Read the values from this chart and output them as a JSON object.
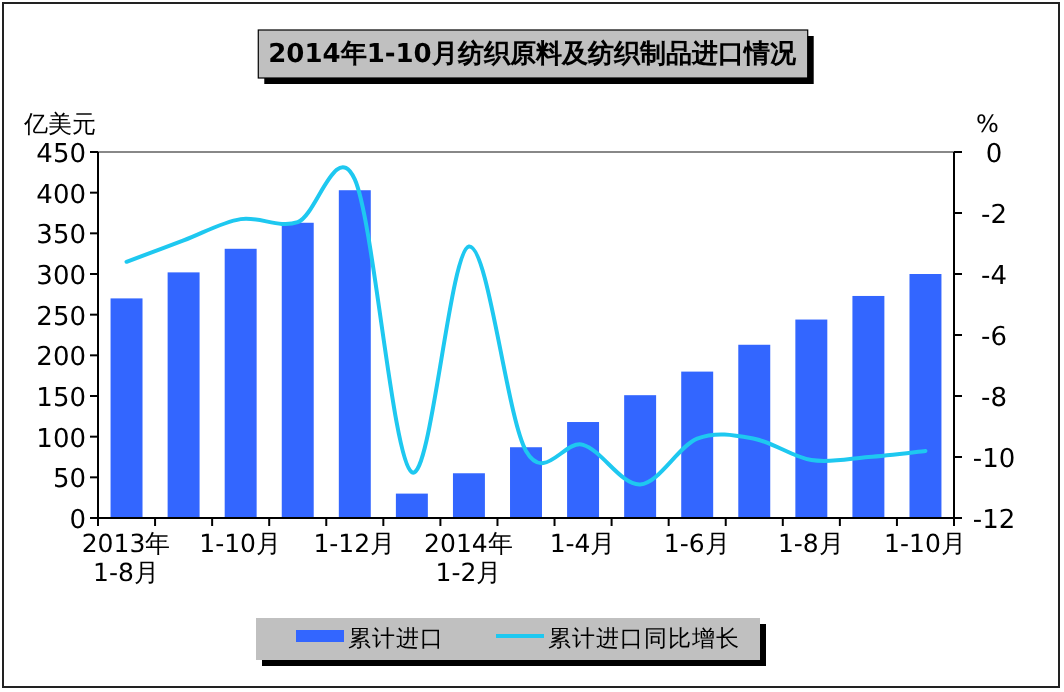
{
  "chart_data": {
    "type": "bar",
    "title": "2014年1-10月纺织原料及纺织制品进口情况",
    "ylabel": "亿美元",
    "y2label": "%",
    "categories": [
      "2013年\n1-8月",
      null,
      "1-10月",
      null,
      "1-12月",
      null,
      "2014年\n1-2月",
      null,
      "1-4月",
      null,
      "1-6月",
      null,
      "1-8月",
      null,
      "1-10月"
    ],
    "series": [
      {
        "name": "累计进口",
        "color": "#3366ff",
        "values": [
          270,
          302,
          331,
          363,
          403,
          30,
          55,
          87,
          118,
          151,
          180,
          213,
          244,
          273,
          300
        ]
      },
      {
        "name": "累计进口同比增长",
        "type": "line",
        "axis": "y2",
        "color": "#1ec8f0",
        "marker": "none",
        "values": [
          -3.6,
          -2.9,
          -2.2,
          -2.3,
          -0.9,
          -10.5,
          -3.1,
          -9.8,
          -9.6,
          -10.9,
          -9.4,
          -9.4,
          -10.1,
          -10.0,
          -9.8
        ]
      }
    ],
    "ylim": [
      0,
      450
    ],
    "yticks": [
      0,
      50,
      100,
      150,
      200,
      250,
      300,
      350,
      400,
      450
    ],
    "y2lim": [
      -12,
      0
    ],
    "y2ticks": [
      -12,
      -10,
      -8,
      -6,
      -4,
      -2,
      0
    ],
    "legend": "bottom",
    "grid": false
  }
}
